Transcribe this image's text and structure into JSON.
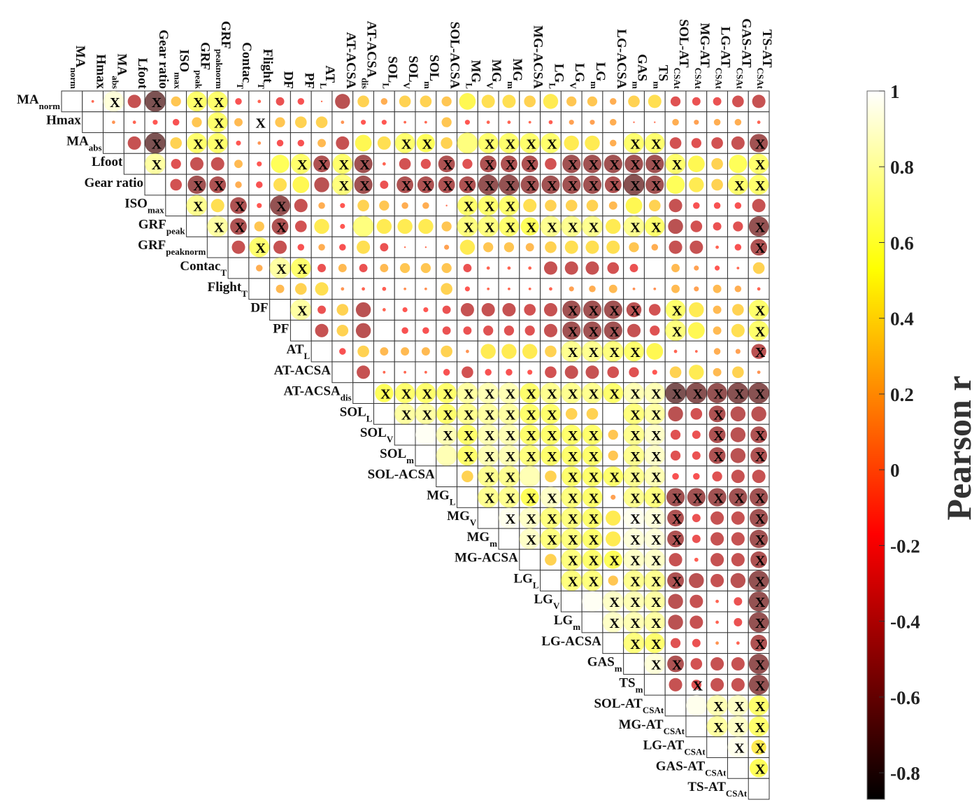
{
  "chart_data": {
    "type": "heatmap",
    "title": "",
    "colorbar": {
      "label": "Pearson r",
      "range": [
        -0.87,
        1
      ],
      "ticks": [
        1,
        0.8,
        0.6,
        0.4,
        0.2,
        0,
        -0.2,
        -0.4,
        -0.6,
        -0.8
      ],
      "tick_labels": [
        "1",
        "0.8",
        "0.6",
        "0.4",
        "0.2",
        "0",
        "-0.2",
        "-0.4",
        "-0.6",
        "-0.8"
      ],
      "stops": [
        [
          -0.87,
          "#000000"
        ],
        [
          -0.17,
          "#ff0000"
        ],
        [
          0.53,
          "#ffff00"
        ],
        [
          1,
          "#ffffff"
        ]
      ]
    },
    "marker_legend": "X",
    "variables": [
      {
        "name": "MA",
        "sub": "norm"
      },
      {
        "name": "Hmax",
        "sub": ""
      },
      {
        "name": "MA",
        "sub": "abs"
      },
      {
        "name": "Lfoot",
        "sub": ""
      },
      {
        "name": "Gear ratio",
        "sub": ""
      },
      {
        "name": "ISO",
        "sub": "max"
      },
      {
        "name": "GRF",
        "sub": "peak"
      },
      {
        "name": "GRF",
        "sub": "peaknorm"
      },
      {
        "name": "Contac",
        "sub": "T"
      },
      {
        "name": "Flight",
        "sub": "T"
      },
      {
        "name": "DF",
        "sub": ""
      },
      {
        "name": "PF",
        "sub": ""
      },
      {
        "name": "AT",
        "sub": "L"
      },
      {
        "name": "AT-ACSA",
        "sub": ""
      },
      {
        "name": "AT-ACSA",
        "sub": "dis"
      },
      {
        "name": "SOL",
        "sub": "L"
      },
      {
        "name": "SOL",
        "sub": "V"
      },
      {
        "name": "SOL",
        "sub": "m"
      },
      {
        "name": "SOL-ACSA",
        "sub": ""
      },
      {
        "name": "MG",
        "sub": "L"
      },
      {
        "name": "MG",
        "sub": "V"
      },
      {
        "name": "MG",
        "sub": "m"
      },
      {
        "name": "MG-ACSA",
        "sub": ""
      },
      {
        "name": "LG",
        "sub": "L"
      },
      {
        "name": "LG",
        "sub": "V"
      },
      {
        "name": "LG",
        "sub": "m"
      },
      {
        "name": "LG-ACSA",
        "sub": ""
      },
      {
        "name": "GAS",
        "sub": "m"
      },
      {
        "name": "TS",
        "sub": "m"
      },
      {
        "name": "SOL-AT",
        "sub": "CSAt"
      },
      {
        "name": "MG-AT",
        "sub": "CSAt"
      },
      {
        "name": "LG-AT",
        "sub": "CSAt"
      },
      {
        "name": "GAS-AT",
        "sub": "CSAt"
      },
      {
        "name": "TS-AT",
        "sub": "CSAt"
      }
    ],
    "upper_triangle_r": [
      [
        -0.08,
        0.9,
        -0.4,
        -0.7,
        0.3,
        0.6,
        0.6,
        -0.2,
        -0.1,
        -0.25,
        -0.2,
        -0.05,
        -0.45,
        0.35,
        0.2,
        0.35,
        0.35,
        0.3,
        0.5,
        0.4,
        0.4,
        0.35,
        0.45,
        0.3,
        0.3,
        0.2,
        0.35,
        0.4,
        -0.3,
        -0.25,
        -0.25,
        -0.35,
        -0.4
      ],
      [
        0.1,
        -0.1,
        -0.15,
        -0.2,
        0.3,
        0.6,
        0.25,
        0.0,
        0.3,
        0.35,
        0.35,
        0.1,
        -0.15,
        -0.15,
        -0.08,
        -0.08,
        0.3,
        -0.15,
        -0.1,
        -0.1,
        -0.08,
        -0.12,
        0.15,
        0.15,
        0.2,
        -0.05,
        -0.05,
        0.2,
        0.15,
        0.2,
        0.2,
        -0.1
      ],
      [
        -0.4,
        -0.7,
        0.35,
        0.6,
        0.6,
        -0.15,
        0.1,
        -0.2,
        -0.2,
        0.25,
        -0.4,
        0.5,
        0.4,
        0.6,
        0.55,
        0.35,
        0.65,
        0.6,
        0.6,
        0.6,
        0.6,
        0.45,
        0.45,
        0.2,
        0.6,
        0.6,
        -0.35,
        -0.3,
        -0.35,
        -0.4,
        -0.55
      ],
      [
        0.75,
        -0.3,
        -0.4,
        -0.4,
        0.25,
        -0.15,
        0.55,
        0.6,
        -0.5,
        0.6,
        -0.55,
        -0.1,
        -0.35,
        -0.3,
        -0.5,
        -0.3,
        -0.5,
        -0.5,
        -0.5,
        -0.35,
        -0.55,
        -0.55,
        -0.55,
        -0.55,
        -0.55,
        0.6,
        0.5,
        0.35,
        0.55,
        0.6
      ],
      [
        -0.35,
        -0.55,
        -0.5,
        0.2,
        -0.2,
        0.4,
        0.5,
        -0.45,
        0.65,
        -0.55,
        -0.25,
        -0.5,
        -0.5,
        -0.5,
        -0.5,
        -0.6,
        -0.6,
        -0.55,
        -0.55,
        -0.55,
        -0.55,
        -0.5,
        -0.65,
        -0.55,
        0.55,
        0.45,
        0.35,
        0.6,
        0.6
      ],
      [
        0.7,
        0.4,
        -0.5,
        -0.15,
        -0.6,
        -0.4,
        0.2,
        -0.15,
        0.35,
        0.3,
        0.2,
        0.2,
        -0.05,
        0.6,
        0.6,
        0.6,
        0.4,
        0.35,
        0.35,
        0.35,
        0.25,
        0.5,
        0.35,
        -0.4,
        -0.2,
        -0.2,
        -0.2,
        -0.4
      ],
      [
        0.75,
        -0.5,
        0.3,
        -0.5,
        -0.35,
        0.45,
        -0.15,
        0.65,
        0.45,
        0.45,
        0.45,
        0.3,
        0.65,
        0.65,
        0.6,
        0.55,
        0.7,
        0.7,
        0.7,
        0.45,
        0.7,
        0.6,
        -0.45,
        -0.35,
        -0.25,
        -0.3,
        -0.6
      ],
      [
        -0.4,
        0.6,
        -0.4,
        -0.2,
        0.2,
        -0.2,
        0.4,
        -0.25,
        -0.05,
        -0.05,
        0.15,
        0.45,
        0.3,
        0.3,
        0.25,
        0.35,
        0.4,
        0.4,
        0.4,
        0.3,
        0.2,
        -0.4,
        -0.4,
        -0.1,
        -0.2,
        -0.5
      ],
      [
        0.2,
        0.75,
        0.6,
        -0.25,
        0.25,
        -0.25,
        0.25,
        0.3,
        0.3,
        0.3,
        -0.25,
        -0.1,
        -0.1,
        -0.1,
        -0.4,
        -0.4,
        -0.4,
        -0.35,
        -0.25,
        0.02,
        0.25,
        0.15,
        -0.15,
        -0.08,
        0.35
      ],
      [
        0.25,
        0.35,
        0.4,
        0.1,
        -0.1,
        -0.12,
        0.08,
        0.08,
        0.35,
        -0.15,
        -0.08,
        -0.08,
        -0.08,
        -0.1,
        0.15,
        0.2,
        0.25,
        0.08,
        0.08,
        0.25,
        0.15,
        0.25,
        0.2,
        -0.1
      ],
      [
        0.75,
        -0.25,
        0.35,
        -0.45,
        -0.1,
        -0.15,
        -0.15,
        -0.25,
        -0.4,
        -0.4,
        -0.4,
        -0.35,
        -0.4,
        -0.55,
        -0.55,
        -0.55,
        -0.45,
        -0.35,
        0.6,
        0.45,
        0.25,
        0.35,
        0.6
      ],
      [
        -0.4,
        0.35,
        -0.45,
        -0.02,
        -0.2,
        -0.2,
        -0.25,
        -0.25,
        -0.3,
        -0.3,
        -0.3,
        -0.4,
        -0.55,
        -0.55,
        -0.55,
        -0.4,
        -0.3,
        0.65,
        0.5,
        0.25,
        0.4,
        0.6
      ],
      [
        -0.2,
        0.35,
        0.25,
        0.25,
        0.25,
        0.35,
        0.1,
        0.45,
        0.45,
        0.45,
        0.35,
        0.7,
        0.7,
        0.65,
        0.6,
        0.5,
        -0.1,
        -0.08,
        0.2,
        0.15,
        -0.45
      ],
      [
        -0.4,
        -0.08,
        -0.08,
        -0.08,
        -0.2,
        -0.35,
        -0.2,
        -0.2,
        -0.15,
        -0.35,
        -0.4,
        -0.4,
        -0.35,
        -0.3,
        -0.15,
        0.35,
        0.45,
        0.25,
        0.35,
        0.1
      ],
      [
        0.55,
        0.6,
        0.6,
        0.6,
        0.75,
        0.8,
        0.8,
        0.6,
        0.7,
        0.7,
        0.7,
        0.6,
        0.8,
        0.8,
        -0.7,
        -0.65,
        -0.6,
        -0.65,
        -0.65
      ],
      [
        0.75,
        0.75,
        0.6,
        0.7,
        0.75,
        0.75,
        0.6,
        0.6,
        0.35,
        0.35,
        0.0,
        0.65,
        0.75,
        -0.45,
        -0.35,
        -0.5,
        -0.45,
        -0.45
      ],
      [
        0.97,
        0.8,
        0.6,
        0.8,
        0.8,
        0.6,
        0.6,
        0.6,
        0.6,
        0.3,
        0.7,
        0.85,
        -0.3,
        -0.25,
        -0.5,
        -0.45,
        -0.5
      ],
      [
        0.8,
        0.6,
        0.8,
        0.8,
        0.65,
        0.6,
        0.6,
        0.6,
        0.3,
        0.7,
        0.85,
        -0.3,
        -0.25,
        -0.5,
        -0.45,
        -0.5
      ],
      [
        0.35,
        0.7,
        0.7,
        0.8,
        0.35,
        0.6,
        0.6,
        0.6,
        0.7,
        0.8,
        -0.2,
        -0.2,
        -0.3,
        -0.4,
        -0.4
      ],
      [
        0.7,
        0.7,
        0.55,
        0.85,
        0.65,
        0.6,
        0.15,
        0.7,
        0.65,
        -0.55,
        -0.55,
        -0.55,
        -0.55,
        -0.55
      ],
      [
        0.95,
        0.85,
        0.65,
        0.65,
        0.6,
        0.45,
        0.95,
        0.9,
        -0.5,
        -0.25,
        -0.4,
        -0.4,
        -0.55
      ],
      [
        0.85,
        0.65,
        0.65,
        0.6,
        0.45,
        0.9,
        0.9,
        -0.5,
        -0.25,
        -0.4,
        -0.4,
        -0.55
      ],
      [
        0.35,
        0.65,
        0.6,
        0.55,
        0.85,
        0.85,
        -0.4,
        -0.12,
        -0.4,
        -0.4,
        -0.5
      ],
      [
        0.65,
        0.65,
        0.3,
        0.7,
        0.7,
        -0.5,
        -0.45,
        -0.4,
        -0.45,
        -0.6
      ],
      [
        0.97,
        0.85,
        0.8,
        0.75,
        -0.45,
        -0.4,
        -0.1,
        -0.25,
        -0.6
      ],
      [
        0.85,
        0.8,
        0.75,
        -0.45,
        -0.4,
        -0.1,
        -0.25,
        -0.6
      ],
      [
        0.65,
        0.6,
        -0.3,
        -0.25,
        0.1,
        -0.1,
        -0.5
      ],
      [
        0.9,
        -0.5,
        -0.35,
        -0.4,
        -0.4,
        -0.6
      ],
      [
        -0.4,
        -0.3,
        -0.4,
        -0.4,
        -0.6
      ],
      [
        0.95,
        0.8,
        0.85,
        0.6
      ],
      [
        0.75,
        0.85,
        0.6
      ],
      [
        0.95,
        0.45
      ],
      [
        0.55
      ],
      []
    ],
    "x_marked_columns": [
      [
        2,
        4,
        6,
        7
      ],
      [
        7,
        9
      ],
      [
        4,
        6,
        7,
        16,
        17,
        20,
        21,
        22,
        23,
        27,
        28,
        33
      ],
      [
        4,
        11,
        12,
        13,
        14,
        18,
        20,
        21,
        22,
        24,
        25,
        26,
        27,
        28,
        29,
        33
      ],
      [
        6,
        7,
        13,
        14,
        16,
        17,
        18,
        19,
        20,
        21,
        22,
        23,
        24,
        25,
        26,
        27,
        28,
        32,
        33
      ],
      [
        6,
        8,
        10,
        19,
        20,
        21
      ],
      [
        7,
        8,
        10,
        19,
        20,
        21,
        22,
        23,
        24,
        25,
        27,
        28,
        33
      ],
      [
        9,
        33
      ],
      [
        10,
        11
      ],
      [],
      [
        11,
        24,
        25,
        26,
        27,
        29,
        33
      ],
      [
        24,
        25,
        26,
        29,
        33
      ],
      [
        24,
        25,
        26,
        27,
        33
      ],
      [],
      [
        15,
        16,
        17,
        18,
        19,
        20,
        21,
        22,
        23,
        24,
        25,
        26,
        27,
        28,
        29,
        30,
        31,
        32,
        33
      ],
      [
        16,
        17,
        18,
        19,
        20,
        21,
        22,
        23,
        27,
        28,
        31
      ],
      [
        18,
        19,
        20,
        21,
        22,
        23,
        24,
        25,
        27,
        28,
        31,
        33
      ],
      [
        19,
        20,
        21,
        22,
        23,
        24,
        25,
        27,
        28,
        31,
        33
      ],
      [
        20,
        21,
        24,
        25,
        26,
        27,
        28
      ],
      [
        20,
        21,
        22,
        23,
        24,
        25,
        27,
        28,
        29,
        30,
        31,
        32,
        33
      ],
      [
        21,
        22,
        23,
        24,
        25,
        27,
        28,
        29,
        33
      ],
      [
        22,
        23,
        24,
        25,
        27,
        28,
        29,
        33
      ],
      [
        24,
        25,
        26,
        27,
        28,
        33
      ],
      [
        24,
        25,
        27,
        28,
        29,
        33
      ],
      [
        26,
        27,
        28,
        33
      ],
      [
        26,
        27,
        28,
        33
      ],
      [
        27,
        28,
        33
      ],
      [
        28,
        29,
        33
      ],
      [
        30,
        33
      ],
      [
        31,
        32,
        33
      ],
      [
        31,
        32,
        33
      ],
      [
        32,
        33
      ],
      [
        33
      ],
      []
    ]
  }
}
